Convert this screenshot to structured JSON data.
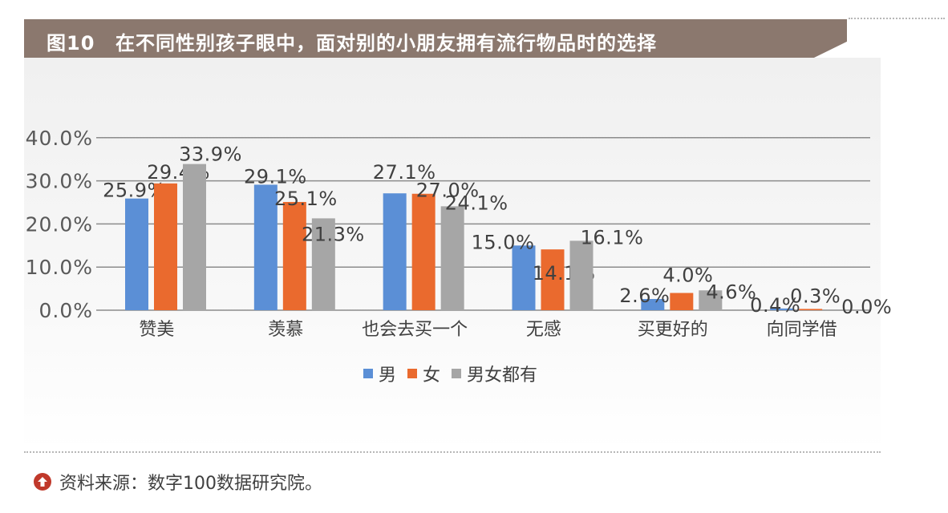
{
  "header": {
    "figure_number": "图10",
    "title": "在不同性别孩子眼中，面对别的小朋友拥有流行物品时的选择"
  },
  "chart_data": {
    "type": "bar",
    "title": "在不同性别孩子眼中，面对别的小朋友拥有流行物品时的选择",
    "categories": [
      "赞美",
      "羡慕",
      "也会去买一个",
      "无感",
      "买更好的",
      "向同学借"
    ],
    "series": [
      {
        "name": "男",
        "color": "#5b8fd6",
        "values": [
          25.9,
          29.1,
          27.1,
          15.0,
          2.6,
          0.4
        ],
        "labels": [
          "25.9%",
          "29.1%",
          "27.1%",
          "15.0%",
          "2.6%",
          "0.4%"
        ]
      },
      {
        "name": "女",
        "color": "#ea6a2e",
        "values": [
          29.4,
          25.1,
          27.0,
          14.1,
          4.0,
          0.3
        ],
        "labels": [
          "29.4%",
          "25.1%",
          "27.0%",
          "14.1%",
          "4.0%",
          "0.3%"
        ]
      },
      {
        "name": "男女都有",
        "color": "#a6a6a6",
        "values": [
          33.9,
          21.3,
          24.1,
          16.1,
          4.6,
          0.0
        ],
        "labels": [
          "33.9%",
          "21.3%",
          "24.1%",
          "16.1%",
          "4.6%",
          "0.0%"
        ]
      }
    ],
    "y_ticks": [
      0,
      10,
      20,
      30,
      40
    ],
    "y_tick_labels": [
      "0.0%",
      "10.0%",
      "20.0%",
      "30.0%",
      "40.0%"
    ],
    "ylim": [
      0,
      40
    ],
    "grid": true,
    "legend_position": "bottom-center"
  },
  "legend": {
    "items": [
      {
        "label": "男",
        "color": "#5b8fd6"
      },
      {
        "label": "女",
        "color": "#ea6a2e"
      },
      {
        "label": "男女都有",
        "color": "#a6a6a6"
      }
    ]
  },
  "footer": {
    "source_label": "资料来源：",
    "source_text": "数字100数据研究院。"
  }
}
